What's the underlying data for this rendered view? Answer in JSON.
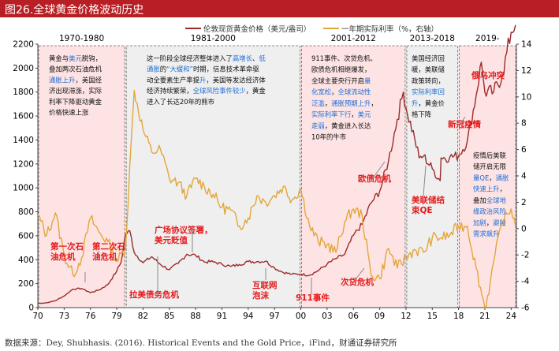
{
  "title": "图26.全球黄金价格波动历史",
  "source": "数据来源：Dey, Shubhasis. (2016). Historical Events and the Gold Price，iFind，财通证券研究所",
  "colors": {
    "title_bg": "#b81f24",
    "gold_price": "#9c2b2b",
    "real_rate": "#e3a63b",
    "shade_red": "#fde3e3",
    "shade_grey": "#efefef",
    "annotation_red": "#e41a1c",
    "annotation_blue": "#1f6fd6"
  },
  "chart_data": {
    "type": "line",
    "x_range": [
      1970,
      2024.6
    ],
    "x_ticks": [
      "70",
      "73",
      "76",
      "79",
      "82",
      "85",
      "88",
      "91",
      "94",
      "97",
      "00",
      "03",
      "06",
      "09",
      "12",
      "15",
      "18",
      "21",
      "24"
    ],
    "y_left": {
      "min": 0,
      "max": 2200,
      "ticks": [
        "0",
        "200",
        "400",
        "600",
        "800",
        "1000",
        "1200",
        "1400",
        "1600",
        "1800",
        "2000",
        "2200"
      ]
    },
    "y_right": {
      "min": -6,
      "max": 14,
      "ticks": [
        "-6",
        "-4",
        "-2",
        "0",
        "2",
        "4",
        "6",
        "8",
        "10",
        "12",
        "14"
      ]
    },
    "legend": [
      {
        "name": "伦敦现货黄金价格（美元/盎司）"
      },
      {
        "name": "一年期实际利率（%，右轴）"
      }
    ],
    "periods": [
      {
        "label": "1970-1980",
        "start": 1970,
        "end": 1980,
        "shade": "red"
      },
      {
        "label": "1981-2000",
        "start": 1980,
        "end": 2000,
        "shade": "grey"
      },
      {
        "label": "2001-2012",
        "start": 2000,
        "end": 2012,
        "shade": "red"
      },
      {
        "label": "2013-2018",
        "start": 2012,
        "end": 2018,
        "shade": "grey"
      },
      {
        "label": "2019-",
        "start": 2018,
        "end": 2024.6,
        "shade": "red"
      }
    ],
    "period_texts": [
      {
        "lines": [
          "黄金与美元脱钩，",
          "叠加两次石油危机",
          "通胀上升，美国经",
          "济出现滞涨，实际",
          "利率下降驱动黄金",
          "价格快速上涨"
        ]
      },
      {
        "lines": [
          "这一阶段全球经济整体进入了高增长、低",
          "通胀的“大缓和”时期，信息技术革命驱",
          "动全要素生产率提升，美国等发达经济体",
          "经济持续繁荣，全球风险事件较少，黄金",
          "进入了长达20年的熊市"
        ]
      },
      {
        "lines": [
          "911事件、次贷危机、",
          "欧债危机相继爆发，",
          "全球主要央行开启量",
          "化宽松，全球流动性",
          "泛滥，通胀预期上升，",
          "实际利率下行，美元",
          "走弱，黄金进入长达",
          "10年的牛市"
        ]
      },
      {
        "lines": [
          "美国经济回",
          "暖，美联储",
          "政策转向，",
          "实际利率回",
          "升，黄金价",
          "格下降"
        ]
      },
      {
        "lines": [
          "疫情后美联",
          "储开启无限",
          "量QE，通胀",
          "快速上升，",
          "叠加全球地",
          "缘政治风险",
          "加剧，避险",
          "需求飙升"
        ]
      }
    ],
    "events": [
      {
        "label": "第一次石油危机"
      },
      {
        "label": "第二次石油危机"
      },
      {
        "label": "拉美债务危机"
      },
      {
        "label": "广场协议签署，美元贬值"
      },
      {
        "label": "互联网泡沫"
      },
      {
        "label": "911事件"
      },
      {
        "label": "次贷危机"
      },
      {
        "label": "欧债危机"
      },
      {
        "label": "美联储结束QE"
      },
      {
        "label": "新冠疫情"
      },
      {
        "label": "俄乌冲突"
      }
    ],
    "series": [
      {
        "name": "伦敦现货黄金价格（美元/盎司）",
        "axis": "left",
        "x": [
          1970,
          1971,
          1972,
          1973,
          1974,
          1975,
          1976,
          1977,
          1978,
          1979,
          1979.5,
          1980,
          1980.5,
          1981,
          1982,
          1983,
          1984,
          1985,
          1986,
          1987,
          1988,
          1989,
          1990,
          1991,
          1992,
          1993,
          1994,
          1995,
          1996,
          1997,
          1998,
          1999,
          2000,
          2001,
          2002,
          2003,
          2004,
          2005,
          2006,
          2007,
          2008,
          2009,
          2010,
          2011,
          2011.7,
          2012,
          2013,
          2013.5,
          2014,
          2015,
          2015.9,
          2016,
          2017,
          2018,
          2019,
          2020,
          2020.6,
          2021,
          2022,
          2023,
          2024,
          2024.5
        ],
        "y": [
          35,
          40,
          58,
          97,
          155,
          160,
          125,
          148,
          193,
          306,
          380,
          615,
          640,
          460,
          375,
          425,
          360,
          317,
          368,
          446,
          437,
          381,
          383,
          362,
          344,
          360,
          384,
          384,
          388,
          331,
          294,
          279,
          279,
          271,
          310,
          363,
          409,
          444,
          603,
          695,
          872,
          972,
          1224,
          1570,
          1800,
          1669,
          1411,
          1250,
          1266,
          1160,
          1060,
          1250,
          1257,
          1268,
          1392,
          1770,
          2050,
          1799,
          1800,
          1940,
          2300,
          2360
        ]
      },
      {
        "name": "一年期实际利率（%，右轴）",
        "axis": "right",
        "x": [
          1970,
          1971,
          1972,
          1973,
          1974,
          1975,
          1976,
          1977,
          1978,
          1979,
          1980,
          1980.6,
          1981,
          1982,
          1983,
          1984,
          1985,
          1986,
          1987,
          1988,
          1989,
          1990,
          1991,
          1992,
          1993,
          1994,
          1995,
          1996,
          1997,
          1998,
          1999,
          2000,
          2001,
          2002,
          2003,
          2004,
          2005,
          2006,
          2007,
          2008,
          2009,
          2010,
          2011,
          2012,
          2013,
          2014,
          2015,
          2016,
          2017,
          2018,
          2019,
          2020,
          2021,
          2021.6,
          2022,
          2023,
          2024,
          2024.5
        ],
        "y": [
          1.0,
          -0.5,
          1.2,
          -2.0,
          -3.5,
          -2.2,
          0.8,
          -0.3,
          -1.0,
          -2.5,
          -1.5,
          6.0,
          10.5,
          7.5,
          5.8,
          6.0,
          3.8,
          3.5,
          2.5,
          3.8,
          3.2,
          2.6,
          1.6,
          1.4,
          0.2,
          0.8,
          2.5,
          2.0,
          2.5,
          3.2,
          2.2,
          3.0,
          0.2,
          -1.0,
          -1.2,
          -1.8,
          0.5,
          1.5,
          1.0,
          -3.5,
          -3.8,
          -1.5,
          -3.0,
          -2.2,
          -1.6,
          -1.8,
          -0.7,
          -0.7,
          -0.5,
          0.2,
          0.2,
          -3.0,
          -6.0,
          -4.2,
          -2.5,
          0.5,
          1.5,
          0.2
        ]
      }
    ]
  }
}
